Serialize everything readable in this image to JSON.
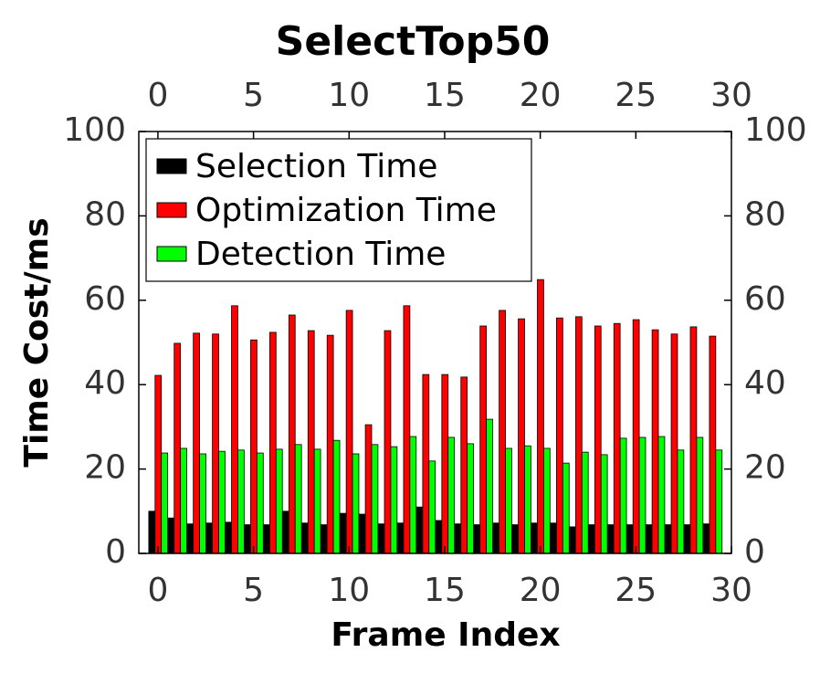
{
  "chart_data": {
    "type": "bar",
    "title": "SelectTop50",
    "x_label": "Frame Index",
    "y_label": "Time Cost/ms",
    "x": [
      0,
      1,
      2,
      3,
      4,
      5,
      6,
      7,
      8,
      9,
      10,
      11,
      12,
      13,
      14,
      15,
      16,
      17,
      18,
      19,
      20,
      21,
      22,
      23,
      24,
      25,
      26,
      27,
      28,
      29
    ],
    "series": [
      {
        "name": "Selection Time",
        "color": "#000000",
        "values": [
          10.0,
          8.4,
          7.0,
          7.2,
          7.4,
          6.8,
          6.8,
          10.0,
          7.2,
          6.8,
          9.5,
          9.3,
          7.0,
          7.2,
          11.0,
          7.8,
          7.0,
          6.8,
          7.2,
          6.8,
          7.2,
          7.2,
          6.3,
          6.8,
          6.8,
          6.8,
          6.8,
          6.8,
          6.8,
          7.0
        ]
      },
      {
        "name": "Optimization Time",
        "color": "#ff0000",
        "values": [
          42.2,
          49.8,
          52.2,
          52.0,
          58.7,
          50.6,
          52.4,
          56.5,
          52.8,
          51.7,
          57.6,
          30.5,
          52.8,
          58.7,
          42.4,
          42.4,
          41.8,
          53.9,
          57.6,
          55.6,
          64.9,
          55.8,
          56.1,
          53.9,
          54.5,
          55.4,
          53.0,
          52.0,
          53.7,
          51.5
        ]
      },
      {
        "name": "Detection Time",
        "color": "#00ff00",
        "values": [
          23.8,
          24.9,
          23.6,
          24.2,
          24.5,
          23.8,
          24.7,
          25.8,
          24.7,
          26.8,
          23.6,
          25.8,
          25.3,
          27.7,
          21.9,
          27.5,
          26.0,
          31.8,
          24.9,
          25.5,
          24.9,
          21.4,
          24.0,
          23.4,
          27.3,
          27.5,
          27.7,
          24.5,
          27.5,
          24.5
        ]
      }
    ],
    "xlim": [
      -1,
      30
    ],
    "xticks": [
      0,
      5,
      10,
      15,
      20,
      25,
      30
    ],
    "ylim": [
      0,
      100
    ],
    "yticks": [
      0,
      20,
      40,
      60,
      80,
      100
    ],
    "legend": "upper-left"
  }
}
